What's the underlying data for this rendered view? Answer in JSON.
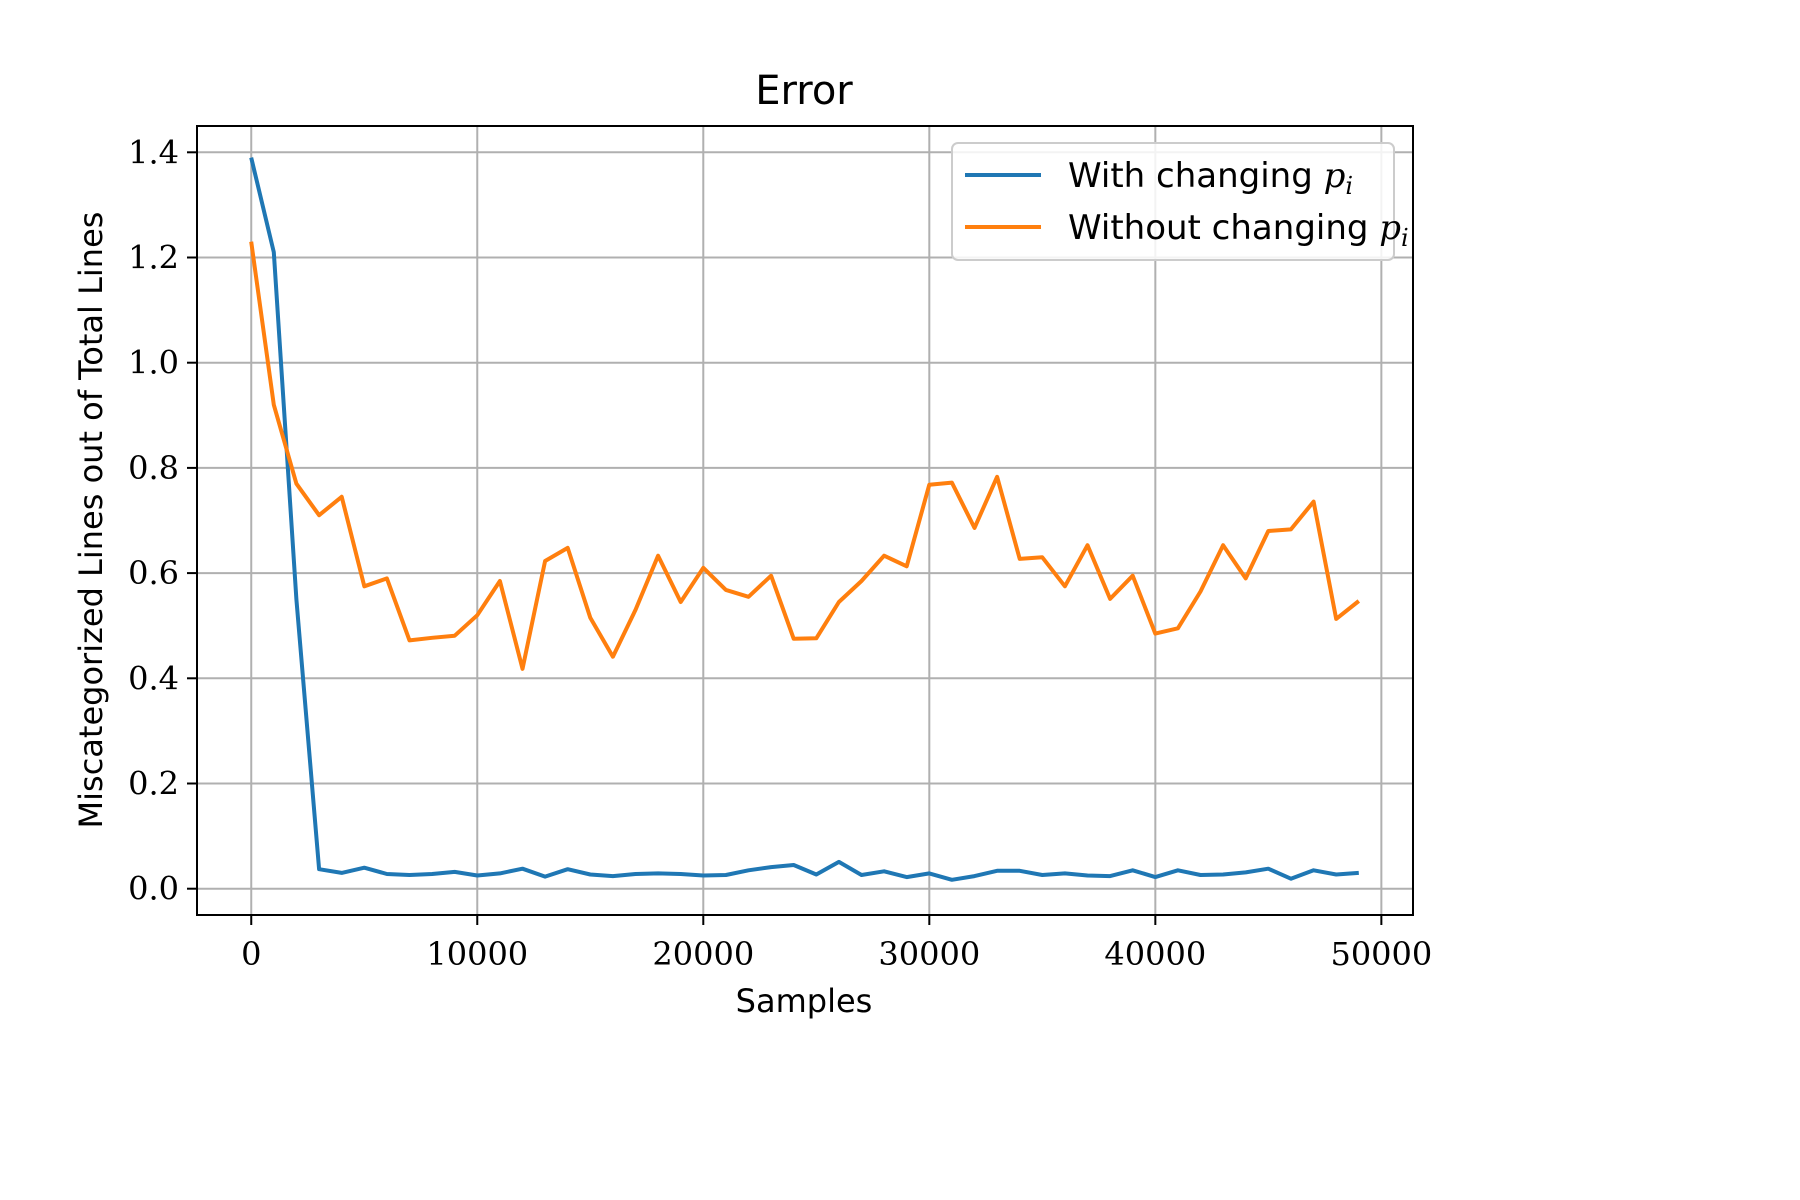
{
  "chart_data": {
    "type": "line",
    "title": "Error",
    "xlabel": "Samples",
    "ylabel": "Miscategorized Lines out of Total Lines",
    "xlim": [
      -2400,
      51400
    ],
    "ylim": [
      -0.05,
      1.45
    ],
    "xticks": [
      0,
      10000,
      20000,
      30000,
      40000,
      50000
    ],
    "xtick_labels": [
      "0",
      "10000",
      "20000",
      "30000",
      "40000",
      "50000"
    ],
    "yticks": [
      0.0,
      0.2,
      0.4,
      0.6,
      0.8,
      1.0,
      1.2,
      1.4
    ],
    "ytick_labels": [
      "0.0",
      "0.2",
      "0.4",
      "0.6",
      "0.8",
      "1.0",
      "1.2",
      "1.4"
    ],
    "grid": true,
    "legend_position": "top-right",
    "x": [
      0,
      1000,
      2000,
      3000,
      4000,
      5000,
      6000,
      7000,
      8000,
      9000,
      10000,
      11000,
      12000,
      13000,
      14000,
      15000,
      16000,
      17000,
      18000,
      19000,
      20000,
      21000,
      22000,
      23000,
      24000,
      25000,
      26000,
      27000,
      28000,
      29000,
      30000,
      31000,
      32000,
      33000,
      34000,
      35000,
      36000,
      37000,
      38000,
      39000,
      40000,
      41000,
      42000,
      43000,
      44000,
      45000,
      46000,
      47000,
      48000,
      49000
    ],
    "series": [
      {
        "name": "With changing",
        "name_math": "p",
        "name_sub": "i",
        "color": "#1f77b4",
        "values": [
          1.39,
          1.21,
          0.55,
          0.037,
          0.03,
          0.04,
          0.028,
          0.026,
          0.028,
          0.032,
          0.025,
          0.029,
          0.038,
          0.023,
          0.037,
          0.027,
          0.024,
          0.028,
          0.029,
          0.028,
          0.025,
          0.026,
          0.035,
          0.041,
          0.045,
          0.027,
          0.051,
          0.026,
          0.033,
          0.022,
          0.029,
          0.017,
          0.024,
          0.034,
          0.034,
          0.026,
          0.029,
          0.025,
          0.024,
          0.035,
          0.022,
          0.035,
          0.026,
          0.027,
          0.031,
          0.038,
          0.019,
          0.035,
          0.027,
          0.03
        ]
      },
      {
        "name": "Without changing",
        "name_math": "p",
        "name_sub": "i",
        "color": "#ff7f0e",
        "values": [
          1.23,
          0.92,
          0.77,
          0.71,
          0.745,
          0.575,
          0.59,
          0.472,
          0.477,
          0.481,
          0.52,
          0.585,
          0.418,
          0.623,
          0.648,
          0.515,
          0.441,
          0.53,
          0.633,
          0.545,
          0.61,
          0.568,
          0.555,
          0.595,
          0.475,
          0.476,
          0.545,
          0.585,
          0.633,
          0.613,
          0.768,
          0.772,
          0.686,
          0.783,
          0.627,
          0.63,
          0.575,
          0.653,
          0.551,
          0.595,
          0.485,
          0.495,
          0.565,
          0.653,
          0.59,
          0.68,
          0.683,
          0.736,
          0.513,
          0.547
        ]
      }
    ]
  }
}
